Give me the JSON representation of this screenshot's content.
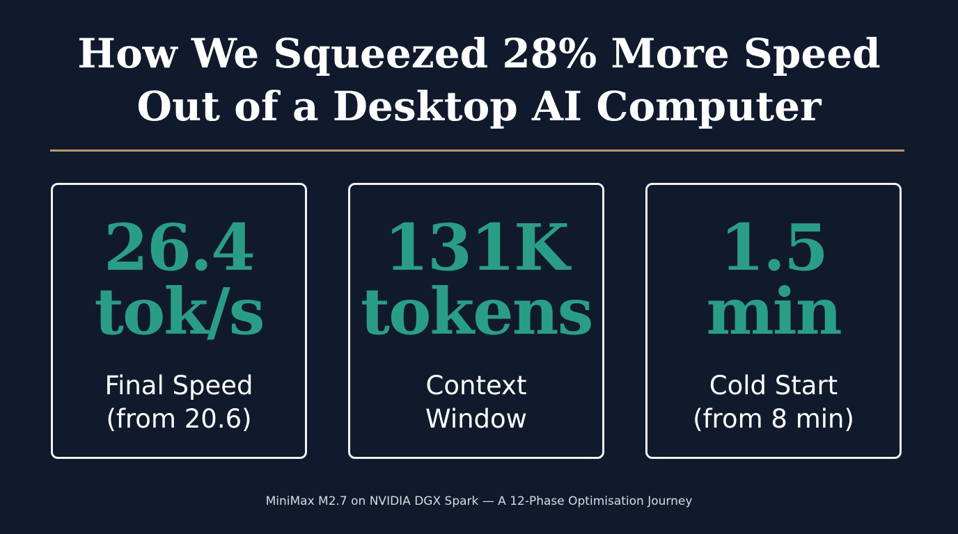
{
  "header": {
    "title_lines": [
      "How We Squeezed 28% More Speed",
      "Out of a Desktop AI Computer"
    ]
  },
  "cards": [
    {
      "value_lines": [
        "26.4",
        "tok/s"
      ],
      "label_lines": [
        "Final Speed",
        "(from 20.6)"
      ]
    },
    {
      "value_lines": [
        "131K",
        "tokens"
      ],
      "label_lines": [
        "Context",
        "Window"
      ]
    },
    {
      "value_lines": [
        "1.5",
        "min"
      ],
      "label_lines": [
        "Cold Start",
        "(from 8 min)"
      ]
    }
  ],
  "footer": "MiniMax M2.7 on NVIDIA DGX Spark — A 12-Phase Optimisation Journey"
}
